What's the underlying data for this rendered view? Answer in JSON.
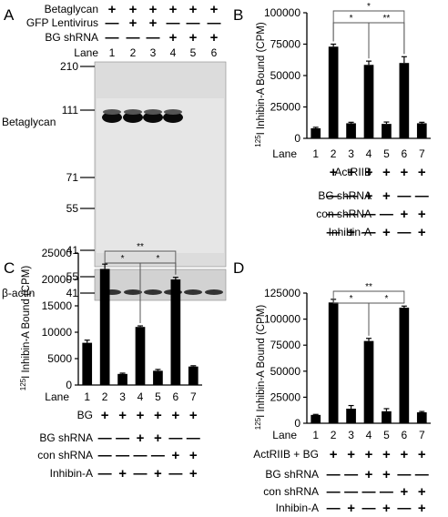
{
  "panel_letters": [
    "A",
    "B",
    "C",
    "D"
  ],
  "blot": {
    "row_labels": [
      "Betaglycan",
      "GFP Lentivirus",
      "BG shRNA",
      "Lane"
    ],
    "rows": [
      [
        "+",
        "+",
        "+",
        "+",
        "+",
        "+"
      ],
      [
        "—",
        "+",
        "+",
        "—",
        "—",
        "—"
      ],
      [
        "—",
        "—",
        "—",
        "+",
        "+",
        "+"
      ]
    ],
    "lanes": [
      "1",
      "2",
      "3",
      "4",
      "5",
      "6"
    ],
    "mw_markers": [
      "210",
      "111",
      "71",
      "55",
      "41"
    ],
    "actin_markers": [
      "55",
      "41"
    ],
    "band_label": "Betaglycan",
    "actin_label": "β-actin",
    "betaglycan_band_lanes": [
      1,
      1,
      1,
      1,
      0,
      0
    ],
    "actin_band_lanes": [
      1,
      1,
      1,
      1,
      1,
      1
    ]
  },
  "chart_data": [
    {
      "panel": "B",
      "type": "bar",
      "ylabel_sup": "125",
      "ylabel": "I Inhibin-A Bound (CPM)",
      "yticks": [
        "0",
        "25000",
        "50000",
        "75000",
        "100000"
      ],
      "ylim": [
        0,
        100000
      ],
      "categories": [
        "1",
        "2",
        "3",
        "4",
        "5",
        "6",
        "7"
      ],
      "values": [
        8000,
        73000,
        12000,
        58500,
        11500,
        60000,
        12000
      ],
      "errors": [
        800,
        2000,
        800,
        3000,
        1500,
        5000,
        800
      ],
      "lane_label": "Lane",
      "treatments": [
        {
          "label": "ActRIIB",
          "marks": [
            "",
            "+",
            "+",
            "+",
            "+",
            "+",
            "+"
          ]
        },
        {
          "label": "BG shRNA",
          "marks": [
            "",
            "—",
            "—",
            "+",
            "+",
            "—",
            "—"
          ]
        },
        {
          "label": "con shRNA",
          "marks": [
            "",
            "—",
            "—",
            "—",
            "—",
            "+",
            "+"
          ]
        },
        {
          "label": "Inhibin-A",
          "marks": [
            "",
            "—",
            "+",
            "—",
            "+",
            "—",
            "+"
          ]
        }
      ],
      "significance": [
        {
          "from": 2,
          "to": 6,
          "label": "*"
        },
        {
          "from": 2,
          "to": 4,
          "label": "*"
        },
        {
          "from": 4,
          "to": 6,
          "label": "**"
        }
      ]
    },
    {
      "panel": "C",
      "type": "bar",
      "ylabel_sup": "125",
      "ylabel": "I Inhibin-A Bound (CPM)",
      "yticks": [
        "0",
        "5000",
        "10000",
        "15000",
        "20000",
        "25000"
      ],
      "ylim": [
        0,
        25000
      ],
      "categories": [
        "1",
        "2",
        "3",
        "4",
        "5",
        "6",
        "7"
      ],
      "values": [
        8000,
        22000,
        2100,
        11000,
        2700,
        20000,
        3500
      ],
      "errors": [
        500,
        900,
        150,
        200,
        250,
        400,
        150
      ],
      "lane_label": "Lane",
      "treatments": [
        {
          "label": "BG",
          "marks": [
            "",
            "+",
            "+",
            "+",
            "+",
            "+",
            "+"
          ]
        },
        {
          "label": "BG shRNA",
          "marks": [
            "",
            "—",
            "—",
            "+",
            "+",
            "—",
            "—"
          ]
        },
        {
          "label": "con shRNA",
          "marks": [
            "",
            "—",
            "—",
            "—",
            "—",
            "+",
            "+"
          ]
        },
        {
          "label": "Inhibin-A",
          "marks": [
            "",
            "—",
            "+",
            "—",
            "+",
            "—",
            "+"
          ]
        }
      ],
      "significance": [
        {
          "from": 2,
          "to": 6,
          "label": "**"
        },
        {
          "from": 2,
          "to": 4,
          "label": "*"
        },
        {
          "from": 4,
          "to": 6,
          "label": "*"
        }
      ]
    },
    {
      "panel": "D",
      "type": "bar",
      "ylabel_sup": "125",
      "ylabel": "I Inhibin-A Bound (CPM)",
      "yticks": [
        "0",
        "25000",
        "50000",
        "75000",
        "100000",
        "125000"
      ],
      "ylim": [
        0,
        125000
      ],
      "categories": [
        "1",
        "2",
        "3",
        "4",
        "5",
        "6",
        "7"
      ],
      "values": [
        8000,
        116000,
        14000,
        79000,
        11500,
        111000,
        10500
      ],
      "errors": [
        500,
        3000,
        3000,
        2500,
        2500,
        1500,
        800
      ],
      "lane_label": "Lane",
      "treatments": [
        {
          "label": "ActRIIB + BG",
          "marks": [
            "",
            "+",
            "+",
            "+",
            "+",
            "+",
            "+"
          ]
        },
        {
          "label": "BG shRNA",
          "marks": [
            "",
            "—",
            "—",
            "+",
            "+",
            "—",
            "—"
          ]
        },
        {
          "label": "con shRNA",
          "marks": [
            "",
            "—",
            "—",
            "—",
            "—",
            "+",
            "+"
          ]
        },
        {
          "label": "Inhibin-A",
          "marks": [
            "",
            "—",
            "+",
            "—",
            "+",
            "—",
            "+"
          ]
        }
      ],
      "significance": [
        {
          "from": 2,
          "to": 6,
          "label": "**"
        },
        {
          "from": 2,
          "to": 4,
          "label": "*"
        },
        {
          "from": 4,
          "to": 6,
          "label": "*"
        }
      ]
    }
  ]
}
